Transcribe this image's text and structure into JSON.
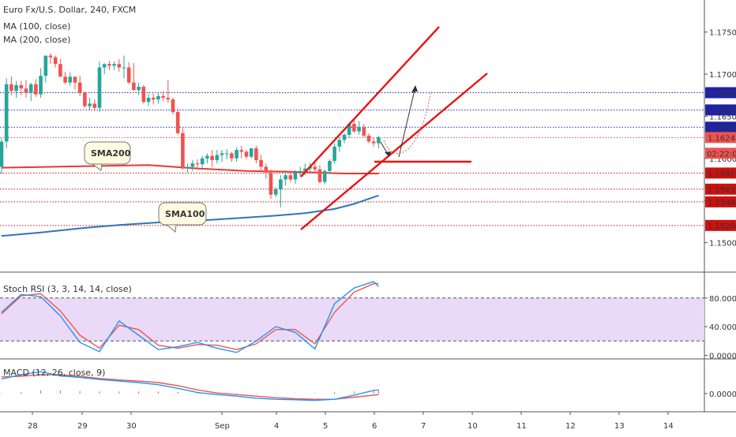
{
  "legend": {
    "symbol": "Euro Fx/U.S. Dollar, 240, FXCM",
    "ma100": "MA (100, close)",
    "ma200": "MA (200, close)",
    "stoch": "Stoch RSI (3, 3, 14, 14, close)",
    "macd": "MACD (12, 26, close, 9)"
  },
  "price_axis": [
    "1.17500",
    "1.17000",
    "1.16500",
    "1.16000",
    "1.15500",
    "1.15000"
  ],
  "stoch_axis": [
    "80.0000",
    "40.0000",
    "0.0000"
  ],
  "macd_axis": [
    "0.0000"
  ],
  "date_axis": [
    "28",
    "29",
    "30",
    "Sep",
    "4",
    "5",
    "6",
    "7",
    "10",
    "11",
    "12",
    "13",
    "14"
  ],
  "levels": [
    {
      "label": "1.16780",
      "value": 1.1678,
      "color": "#1e22aa",
      "box_color": "#1e22aa"
    },
    {
      "label": "1.16575",
      "value": 1.16575,
      "color": "#1e22aa",
      "box_color": "#1e22aa"
    },
    {
      "label": "1.16370",
      "value": 1.1637,
      "color": "#1e22aa",
      "box_color": "#1e22aa"
    },
    {
      "label": "1.16248",
      "value": 1.16248,
      "color": "#e0484a",
      "box_color": "#ef5350"
    },
    {
      "label": "1.15826",
      "value": 1.15826,
      "color": "#cc1111",
      "box_color": "#cc1111"
    },
    {
      "label": "1.15635",
      "value": 1.15635,
      "color": "#cc1111",
      "box_color": "#cc1111"
    },
    {
      "label": "1.15484",
      "value": 1.15484,
      "color": "#cc1111",
      "box_color": "#cc1111"
    },
    {
      "label": "1.15204",
      "value": 1.15204,
      "color": "#cc1111",
      "box_color": "#cc1111"
    }
  ],
  "countdown": "02:22:01",
  "callouts": {
    "sma200": "SMA200",
    "sma100": "SMA100"
  },
  "colors": {
    "up": "#26a69a",
    "down": "#ef5350",
    "sma200": "#e53935",
    "sma100": "#2e75b6",
    "drawing": "#ee1111",
    "stoch_k": "#2196f3",
    "stoch_d": "#ef5350",
    "macd": "#2196f3",
    "signal": "#ef5350",
    "band": "#e6d3f7"
  },
  "chart_data": [
    {
      "type": "candlestick",
      "title": "Euro Fx/U.S. Dollar, 240, FXCM",
      "ylim": [
        1.1465,
        1.1788
      ],
      "x": [
        0,
        1,
        2,
        3,
        4,
        5,
        6,
        7,
        8,
        9,
        10,
        11,
        12,
        13,
        14,
        15,
        16,
        17,
        18,
        19,
        20,
        21,
        22,
        23,
        24,
        25,
        26,
        27,
        28,
        29,
        30,
        31,
        32,
        33,
        34,
        35,
        36,
        37,
        38,
        39,
        40,
        41,
        42,
        43,
        44,
        45,
        46,
        47,
        48,
        49,
        50,
        51,
        52,
        53,
        54,
        55,
        56,
        57,
        58,
        59,
        60,
        61,
        62,
        63,
        64,
        65,
        66,
        67,
        68,
        69,
        70,
        71,
        72,
        73,
        74,
        75,
        76,
        77
      ],
      "ohlc": [
        [
          1.159,
          1.1624,
          1.1582,
          1.162
        ],
        [
          1.162,
          1.1695,
          1.1612,
          1.1688
        ],
        [
          1.1688,
          1.1697,
          1.1675,
          1.168
        ],
        [
          1.168,
          1.1692,
          1.1672,
          1.1687
        ],
        [
          1.1687,
          1.1692,
          1.1675,
          1.1683
        ],
        [
          1.1683,
          1.1693,
          1.1672,
          1.1678
        ],
        [
          1.1678,
          1.169,
          1.1668,
          1.1688
        ],
        [
          1.1688,
          1.1694,
          1.1673,
          1.1676
        ],
        [
          1.1676,
          1.1707,
          1.1672,
          1.1698
        ],
        [
          1.1698,
          1.172,
          1.169,
          1.1722
        ],
        [
          1.1722,
          1.1725,
          1.1712,
          1.172
        ],
        [
          1.172,
          1.1722,
          1.1708,
          1.1712
        ],
        [
          1.1712,
          1.1718,
          1.1697,
          1.1697
        ],
        [
          1.1697,
          1.1703,
          1.1688,
          1.169
        ],
        [
          1.169,
          1.1702,
          1.1686,
          1.1697
        ],
        [
          1.1697,
          1.1697,
          1.1682,
          1.169
        ],
        [
          1.169,
          1.1698,
          1.1674,
          1.1678
        ],
        [
          1.1678,
          1.1679,
          1.166,
          1.1662
        ],
        [
          1.1662,
          1.1672,
          1.1658,
          1.1665
        ],
        [
          1.1665,
          1.167,
          1.1656,
          1.166
        ],
        [
          1.166,
          1.1715,
          1.1655,
          1.1708
        ],
        [
          1.1708,
          1.1713,
          1.17,
          1.1712
        ],
        [
          1.1712,
          1.1716,
          1.1705,
          1.171
        ],
        [
          1.171,
          1.1715,
          1.1705,
          1.1712
        ],
        [
          1.1712,
          1.1718,
          1.1703,
          1.1708
        ],
        [
          1.1708,
          1.1722,
          1.1695,
          1.1708
        ],
        [
          1.1708,
          1.1714,
          1.1688,
          1.169
        ],
        [
          1.169,
          1.1713,
          1.1682,
          1.1681
        ],
        [
          1.1681,
          1.169,
          1.1675,
          1.1685
        ],
        [
          1.1685,
          1.1687,
          1.1665,
          1.1667
        ],
        [
          1.1667,
          1.1677,
          1.1662,
          1.1672
        ],
        [
          1.1672,
          1.1677,
          1.1664,
          1.167
        ],
        [
          1.167,
          1.1677,
          1.1665,
          1.1674
        ],
        [
          1.1674,
          1.168,
          1.1668,
          1.1672
        ],
        [
          1.1672,
          1.1693,
          1.1666,
          1.167
        ],
        [
          1.167,
          1.1672,
          1.1652,
          1.1655
        ],
        [
          1.1655,
          1.1659,
          1.1628,
          1.163
        ],
        [
          1.163,
          1.1636,
          1.1587,
          1.1588
        ],
        [
          1.1588,
          1.1594,
          1.1583,
          1.159
        ],
        [
          1.159,
          1.1598,
          1.1585,
          1.1594
        ],
        [
          1.1594,
          1.1599,
          1.1587,
          1.1593
        ],
        [
          1.1593,
          1.1603,
          1.1589,
          1.16
        ],
        [
          1.16,
          1.1606,
          1.1594,
          1.1603
        ],
        [
          1.1603,
          1.161,
          1.159,
          1.1598
        ],
        [
          1.1598,
          1.161,
          1.1594,
          1.1604
        ],
        [
          1.1604,
          1.161,
          1.1596,
          1.1606
        ],
        [
          1.1606,
          1.1611,
          1.1599,
          1.1606
        ],
        [
          1.1606,
          1.1608,
          1.1596,
          1.16
        ],
        [
          1.16,
          1.1613,
          1.1596,
          1.161
        ],
        [
          1.161,
          1.1615,
          1.16,
          1.1608
        ],
        [
          1.1608,
          1.161,
          1.1599,
          1.1602
        ],
        [
          1.1602,
          1.1612,
          1.16,
          1.1612
        ],
        [
          1.1612,
          1.1615,
          1.1594,
          1.1598
        ],
        [
          1.1598,
          1.1604,
          1.1585,
          1.159
        ],
        [
          1.159,
          1.1594,
          1.1576,
          1.1583
        ],
        [
          1.1583,
          1.1587,
          1.1552,
          1.1557
        ],
        [
          1.1557,
          1.1566,
          1.1554,
          1.1563
        ],
        [
          1.1563,
          1.158,
          1.1542,
          1.1575
        ],
        [
          1.1575,
          1.1586,
          1.1568,
          1.158
        ],
        [
          1.158,
          1.1585,
          1.1572,
          1.1575
        ],
        [
          1.1575,
          1.1586,
          1.157,
          1.1583
        ],
        [
          1.1583,
          1.159,
          1.1578,
          1.1585
        ],
        [
          1.1585,
          1.1594,
          1.158,
          1.1588
        ],
        [
          1.1588,
          1.1595,
          1.1584,
          1.159
        ],
        [
          1.159,
          1.1597,
          1.1583,
          1.1587
        ],
        [
          1.1587,
          1.1592,
          1.157,
          1.1572
        ],
        [
          1.1572,
          1.1587,
          1.1569,
          1.1585
        ],
        [
          1.1585,
          1.1599,
          1.1583,
          1.1597
        ],
        [
          1.1597,
          1.1618,
          1.1594,
          1.1614
        ],
        [
          1.1614,
          1.1625,
          1.1608,
          1.1622
        ],
        [
          1.1622,
          1.163,
          1.1618,
          1.1628
        ],
        [
          1.1628,
          1.1643,
          1.1624,
          1.1641
        ],
        [
          1.1641,
          1.1645,
          1.163,
          1.1632
        ],
        [
          1.1632,
          1.1644,
          1.1628,
          1.1637
        ],
        [
          1.1637,
          1.1641,
          1.1625,
          1.1627
        ],
        [
          1.1627,
          1.163,
          1.1618,
          1.162
        ],
        [
          1.162,
          1.1625,
          1.1614,
          1.1618
        ],
        [
          1.1618,
          1.1627,
          1.1612,
          1.1625
        ]
      ],
      "series": [
        {
          "name": "SMA200",
          "x": [
            0,
            10,
            20,
            30,
            40,
            50,
            60,
            70,
            77
          ],
          "values": [
            1.1589,
            1.159,
            1.1591,
            1.1592,
            1.1588,
            1.1585,
            1.1584,
            1.1582,
            1.1582
          ]
        },
        {
          "name": "SMA100",
          "x": [
            0,
            8,
            16,
            24,
            32,
            40,
            48,
            56,
            62,
            68,
            72,
            77
          ],
          "values": [
            1.1508,
            1.1512,
            1.1517,
            1.1521,
            1.1524,
            1.1526,
            1.1529,
            1.1532,
            1.1535,
            1.154,
            1.1546,
            1.1556
          ]
        }
      ]
    },
    {
      "type": "line",
      "title": "Stoch RSI (3, 3, 14, 14, close)",
      "ylim": [
        -5,
        115
      ],
      "bands": [
        80,
        20
      ],
      "x": [
        0,
        4,
        8,
        12,
        16,
        20,
        24,
        28,
        32,
        36,
        40,
        44,
        48,
        52,
        56,
        60,
        64,
        68,
        72,
        76,
        77
      ],
      "series": [
        {
          "name": "K",
          "values": [
            60,
            85,
            82,
            55,
            18,
            5,
            48,
            28,
            8,
            12,
            18,
            10,
            4,
            20,
            40,
            32,
            9,
            72,
            94,
            103,
            96
          ]
        },
        {
          "name": "D",
          "values": [
            58,
            83,
            86,
            62,
            28,
            10,
            42,
            36,
            14,
            10,
            15,
            14,
            8,
            16,
            36,
            36,
            16,
            60,
            88,
            100,
            100
          ]
        }
      ]
    },
    {
      "type": "line",
      "title": "MACD (12, 26, close, 9)",
      "ylim": [
        -0.00035,
        0.00065
      ],
      "x": [
        0,
        4,
        8,
        12,
        16,
        20,
        24,
        28,
        32,
        36,
        40,
        44,
        48,
        52,
        56,
        60,
        64,
        68,
        72,
        76,
        77
      ],
      "series": [
        {
          "name": "MACD",
          "values": [
            0.00028,
            0.00036,
            0.00042,
            0.00034,
            0.00031,
            0.00027,
            0.00024,
            0.00021,
            0.00017,
            0.0001,
            2e-05,
            -2e-05,
            -5e-05,
            -9e-05,
            -0.00011,
            -0.00012,
            -0.00013,
            -0.00011,
            -3e-05,
            6e-05,
            7e-05
          ]
        },
        {
          "name": "Signal",
          "values": [
            0.00032,
            0.00033,
            0.00036,
            0.00036,
            0.00033,
            0.00029,
            0.00026,
            0.00024,
            0.00021,
            0.00015,
            7e-05,
            1e-05,
            -2e-05,
            -5e-05,
            -8e-05,
            -0.0001,
            -0.00011,
            -0.00011,
            -7e-05,
            -3e-05,
            -2e-05
          ]
        },
        {
          "name": "Histogram",
          "values": [
            1e-05,
            3e-05,
            6e-05,
            6e-05,
            5e-05,
            4e-05,
            4e-05,
            4e-05,
            4e-05,
            3e-05,
            2e-05,
            1e-05,
            1e-05,
            1e-05,
            1e-05,
            1e-05,
            1e-05,
            3e-05,
            4e-05,
            7e-05,
            7e-05
          ]
        }
      ]
    }
  ]
}
